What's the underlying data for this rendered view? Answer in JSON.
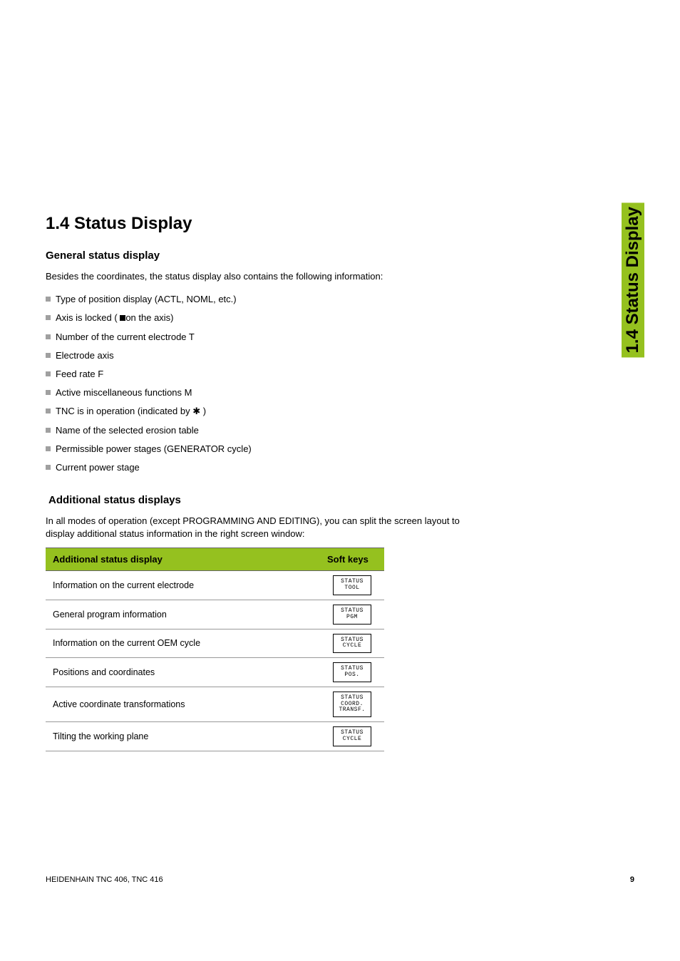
{
  "sideTab": "1.4 Status Display",
  "sectionHeading": "1.4  Status Display",
  "sub1": {
    "title": "General status display",
    "intro": "Besides the coordinates, the status display also contains the following information:",
    "bullets": [
      {
        "text": "Type of position display (ACTL, NOML, etc.)"
      },
      {
        "pre": "Axis is locked ( ",
        "marker": "square",
        "post": "on the axis)"
      },
      {
        "text": "Number of the current electrode T"
      },
      {
        "text": "Electrode axis"
      },
      {
        "text": "Feed rate F"
      },
      {
        "text": "Active miscellaneous functions M"
      },
      {
        "pre": "TNC is in operation (indicated by  ",
        "marker": "asterisk",
        "post": " )"
      },
      {
        "text": "Name of the selected erosion table"
      },
      {
        "text": "Permissible power stages (GENERATOR cycle)"
      },
      {
        "text": "Current power stage"
      }
    ]
  },
  "sub2": {
    "title": "Additional status displays",
    "intro": "In all modes of operation (except PROGRAMMING AND EDITING), you can split the screen layout to display additional status information in the right screen window:"
  },
  "table": {
    "header1": "Additional status display",
    "header2": "Soft keys",
    "rows": [
      {
        "label": "Information on the current electrode",
        "key": "STATUS\nTOOL"
      },
      {
        "label": "General program information",
        "key": "STATUS\nPGM"
      },
      {
        "label": "Information on the current OEM cycle",
        "key": "STATUS\nCYCLE"
      },
      {
        "label": "Positions and coordinates",
        "key": "STATUS\nPOS."
      },
      {
        "label": "Active coordinate transformations",
        "key": "STATUS\nCOORD.\nTRANSF."
      },
      {
        "label": "Tilting the working plane",
        "key": "STATUS\nCYCLE"
      }
    ]
  },
  "footer": {
    "left": "HEIDENHAIN TNC 406, TNC 416",
    "page": "9"
  },
  "colors": {
    "accent": "#95c11f"
  }
}
